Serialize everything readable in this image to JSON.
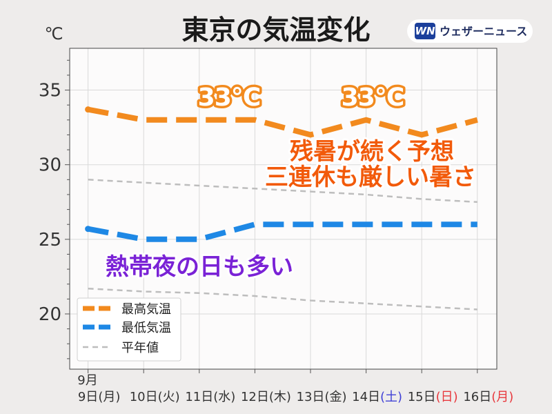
{
  "logo": {
    "badge": "WN",
    "name": "ウェザーニュース",
    "badge_color": "#1b3f9b",
    "text_color": "#1d2b5e"
  },
  "chart_data": {
    "type": "line",
    "title": "東京の気温変化",
    "ylabel": "℃",
    "x": [
      9,
      10,
      11,
      12,
      13,
      14,
      15,
      16
    ],
    "x_period_label": "9月",
    "x_tick_labels": [
      {
        "date": "9日",
        "weekday": "(月)",
        "weekday_color": "#333333"
      },
      {
        "date": "10日",
        "weekday": "(火)",
        "weekday_color": "#333333"
      },
      {
        "date": "11日",
        "weekday": "(水)",
        "weekday_color": "#333333"
      },
      {
        "date": "12日",
        "weekday": "(木)",
        "weekday_color": "#333333"
      },
      {
        "date": "13日",
        "weekday": "(金)",
        "weekday_color": "#333333"
      },
      {
        "date": "14日",
        "weekday": "(土)",
        "weekday_color": "#3f3fd6"
      },
      {
        "date": "15日",
        "weekday": "(日)",
        "weekday_color": "#e8383d"
      },
      {
        "date": "16日",
        "weekday": "(月)",
        "weekday_color": "#e8383d"
      }
    ],
    "y_ticks": [
      20,
      25,
      30,
      35
    ],
    "xlim": [
      8.67,
      16.35
    ],
    "ylim": [
      16.3,
      37.8
    ],
    "grid": true,
    "legend_placement": "bottom-left",
    "series": [
      {
        "name": "最高気温",
        "color": "#f28a1e",
        "values": [
          33.7,
          33,
          33,
          33,
          32,
          33,
          32,
          33
        ]
      },
      {
        "name": "最低気温",
        "color": "#1e88e5",
        "values": [
          25.7,
          25,
          25,
          26,
          26,
          26,
          26,
          26
        ]
      },
      {
        "name": "平年値",
        "color": "#bdbdbd",
        "lines": [
          {
            "values": [
              29.0,
              28.8,
              28.6,
              28.4,
              28.2,
              28.0,
              27.7,
              27.5
            ]
          },
          {
            "values": [
              21.7,
              21.5,
              21.4,
              21.2,
              20.9,
              20.7,
              20.5,
              20.3
            ]
          }
        ]
      }
    ],
    "annotations": [
      {
        "text": "33℃",
        "color": "#f28a1e"
      },
      {
        "text": "33℃",
        "color": "#f28a1e"
      },
      {
        "text": "残暑が続く予想",
        "color": "#f25a0a"
      },
      {
        "text": "三連休も厳しい暑さ",
        "color": "#f25a0a"
      },
      {
        "text": "熱帯夜の日も多い",
        "color": "#7a22d6"
      }
    ]
  }
}
